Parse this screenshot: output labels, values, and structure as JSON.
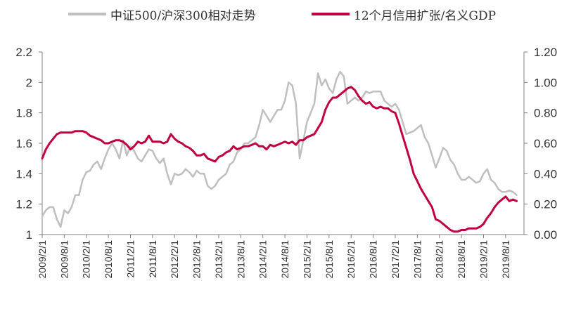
{
  "chart_data": {
    "type": "line",
    "title": "",
    "xlabel": "",
    "ylabel": "",
    "legend_position": "top",
    "grid": false,
    "x_tick_labels": [
      "2009/2/1",
      "2009/8/1",
      "2010/2/1",
      "2010/8/1",
      "2011/2/1",
      "2011/8/1",
      "2012/2/1",
      "2012/8/1",
      "2013/2/1",
      "2013/8/1",
      "2014/2/1",
      "2014/8/1",
      "2015/2/1",
      "2015/8/1",
      "2016/2/1",
      "2016/8/1",
      "2017/2/1",
      "2017/8/1",
      "2018/2/1",
      "2018/8/1",
      "2019/2/1",
      "2019/8/1"
    ],
    "y_left": {
      "lim": [
        1,
        2.2
      ],
      "ticks": [
        "1",
        "1.2",
        "1.4",
        "1.6",
        "1.8",
        "2",
        "2.2"
      ]
    },
    "y_right": {
      "lim": [
        0,
        1.2
      ],
      "ticks": [
        "0.00",
        "0.20",
        "0.40",
        "0.60",
        "0.80",
        "1.00",
        "1.20"
      ]
    },
    "series": [
      {
        "name": "中证500/沪深300相对走势",
        "axis": "left",
        "color": "#bfbfbf",
        "points": [
          [
            "2009/2/1",
            1.12
          ],
          [
            "2009/3/1",
            1.16
          ],
          [
            "2009/4/1",
            1.18
          ],
          [
            "2009/5/1",
            1.18
          ],
          [
            "2009/6/1",
            1.1
          ],
          [
            "2009/7/1",
            1.05
          ],
          [
            "2009/8/1",
            1.16
          ],
          [
            "2009/9/1",
            1.14
          ],
          [
            "2009/10/1",
            1.18
          ],
          [
            "2009/11/1",
            1.26
          ],
          [
            "2009/12/1",
            1.26
          ],
          [
            "2010/1/1",
            1.36
          ],
          [
            "2010/2/1",
            1.41
          ],
          [
            "2010/3/1",
            1.42
          ],
          [
            "2010/4/1",
            1.46
          ],
          [
            "2010/5/1",
            1.48
          ],
          [
            "2010/6/1",
            1.43
          ],
          [
            "2010/7/1",
            1.5
          ],
          [
            "2010/8/1",
            1.56
          ],
          [
            "2010/9/1",
            1.6
          ],
          [
            "2010/10/1",
            1.56
          ],
          [
            "2010/11/1",
            1.5
          ],
          [
            "2010/12/1",
            1.62
          ],
          [
            "2011/1/1",
            1.52
          ],
          [
            "2011/2/1",
            1.58
          ],
          [
            "2011/3/1",
            1.55
          ],
          [
            "2011/4/1",
            1.5
          ],
          [
            "2011/5/1",
            1.48
          ],
          [
            "2011/6/1",
            1.52
          ],
          [
            "2011/7/1",
            1.56
          ],
          [
            "2011/8/1",
            1.55
          ],
          [
            "2011/9/1",
            1.5
          ],
          [
            "2011/10/1",
            1.47
          ],
          [
            "2011/11/1",
            1.5
          ],
          [
            "2011/12/1",
            1.4
          ],
          [
            "2012/1/1",
            1.33
          ],
          [
            "2012/2/1",
            1.4
          ],
          [
            "2012/3/1",
            1.39
          ],
          [
            "2012/4/1",
            1.4
          ],
          [
            "2012/5/1",
            1.43
          ],
          [
            "2012/6/1",
            1.41
          ],
          [
            "2012/7/1",
            1.38
          ],
          [
            "2012/8/1",
            1.42
          ],
          [
            "2012/9/1",
            1.4
          ],
          [
            "2012/10/1",
            1.4
          ],
          [
            "2012/11/1",
            1.32
          ],
          [
            "2012/12/1",
            1.3
          ],
          [
            "2013/1/1",
            1.32
          ],
          [
            "2013/2/1",
            1.36
          ],
          [
            "2013/3/1",
            1.38
          ],
          [
            "2013/4/1",
            1.4
          ],
          [
            "2013/5/1",
            1.46
          ],
          [
            "2013/6/1",
            1.48
          ],
          [
            "2013/7/1",
            1.54
          ],
          [
            "2013/8/1",
            1.56
          ],
          [
            "2013/9/1",
            1.6
          ],
          [
            "2013/10/1",
            1.6
          ],
          [
            "2013/11/1",
            1.62
          ],
          [
            "2013/12/1",
            1.64
          ],
          [
            "2014/1/1",
            1.72
          ],
          [
            "2014/2/1",
            1.82
          ],
          [
            "2014/3/1",
            1.78
          ],
          [
            "2014/4/1",
            1.74
          ],
          [
            "2014/5/1",
            1.78
          ],
          [
            "2014/6/1",
            1.82
          ],
          [
            "2014/7/1",
            1.82
          ],
          [
            "2014/8/1",
            1.88
          ],
          [
            "2014/9/1",
            2.0
          ],
          [
            "2014/10/1",
            1.98
          ],
          [
            "2014/11/1",
            1.86
          ],
          [
            "2014/12/1",
            1.5
          ],
          [
            "2015/1/1",
            1.62
          ],
          [
            "2015/2/1",
            1.74
          ],
          [
            "2015/3/1",
            1.8
          ],
          [
            "2015/4/1",
            1.86
          ],
          [
            "2015/5/1",
            2.06
          ],
          [
            "2015/6/1",
            1.98
          ],
          [
            "2015/7/1",
            2.02
          ],
          [
            "2015/8/1",
            1.96
          ],
          [
            "2015/9/1",
            1.93
          ],
          [
            "2015/10/1",
            2.02
          ],
          [
            "2015/11/1",
            2.07
          ],
          [
            "2015/12/1",
            2.04
          ],
          [
            "2016/1/1",
            1.86
          ],
          [
            "2016/2/1",
            1.88
          ],
          [
            "2016/3/1",
            1.9
          ],
          [
            "2016/4/1",
            1.88
          ],
          [
            "2016/5/1",
            1.9
          ],
          [
            "2016/6/1",
            1.94
          ],
          [
            "2016/7/1",
            1.93
          ],
          [
            "2016/8/1",
            1.94
          ],
          [
            "2016/9/1",
            1.94
          ],
          [
            "2016/10/1",
            1.94
          ],
          [
            "2016/11/1",
            1.88
          ],
          [
            "2016/12/1",
            1.86
          ],
          [
            "2017/1/1",
            1.84
          ],
          [
            "2017/2/1",
            1.86
          ],
          [
            "2017/3/1",
            1.82
          ],
          [
            "2017/4/1",
            1.74
          ],
          [
            "2017/5/1",
            1.66
          ],
          [
            "2017/6/1",
            1.67
          ],
          [
            "2017/7/1",
            1.68
          ],
          [
            "2017/8/1",
            1.7
          ],
          [
            "2017/9/1",
            1.72
          ],
          [
            "2017/10/1",
            1.64
          ],
          [
            "2017/11/1",
            1.6
          ],
          [
            "2017/12/1",
            1.52
          ],
          [
            "2018/1/1",
            1.44
          ],
          [
            "2018/2/1",
            1.5
          ],
          [
            "2018/3/1",
            1.57
          ],
          [
            "2018/4/1",
            1.55
          ],
          [
            "2018/5/1",
            1.49
          ],
          [
            "2018/6/1",
            1.46
          ],
          [
            "2018/7/1",
            1.4
          ],
          [
            "2018/8/1",
            1.36
          ],
          [
            "2018/9/1",
            1.36
          ],
          [
            "2018/10/1",
            1.38
          ],
          [
            "2018/11/1",
            1.36
          ],
          [
            "2018/12/1",
            1.34
          ],
          [
            "2019/1/1",
            1.35
          ],
          [
            "2019/2/1",
            1.4
          ],
          [
            "2019/3/1",
            1.43
          ],
          [
            "2019/4/1",
            1.36
          ],
          [
            "2019/5/1",
            1.34
          ],
          [
            "2019/6/1",
            1.3
          ],
          [
            "2019/7/1",
            1.28
          ],
          [
            "2019/8/1",
            1.28
          ],
          [
            "2019/9/1",
            1.29
          ],
          [
            "2019/10/1",
            1.28
          ],
          [
            "2019/11/1",
            1.26
          ]
        ]
      },
      {
        "name": "12个月信用扩张/名义GDP",
        "axis": "right",
        "color": "#c00040",
        "points": [
          [
            "2009/2/1",
            0.5
          ],
          [
            "2009/3/1",
            0.56
          ],
          [
            "2009/4/1",
            0.6
          ],
          [
            "2009/5/1",
            0.63
          ],
          [
            "2009/6/1",
            0.66
          ],
          [
            "2009/7/1",
            0.67
          ],
          [
            "2009/8/1",
            0.67
          ],
          [
            "2009/9/1",
            0.67
          ],
          [
            "2009/10/1",
            0.67
          ],
          [
            "2009/11/1",
            0.68
          ],
          [
            "2009/12/1",
            0.68
          ],
          [
            "2010/1/1",
            0.68
          ],
          [
            "2010/2/1",
            0.67
          ],
          [
            "2010/3/1",
            0.65
          ],
          [
            "2010/4/1",
            0.64
          ],
          [
            "2010/5/1",
            0.63
          ],
          [
            "2010/6/1",
            0.62
          ],
          [
            "2010/7/1",
            0.6
          ],
          [
            "2010/8/1",
            0.6
          ],
          [
            "2010/9/1",
            0.61
          ],
          [
            "2010/10/1",
            0.62
          ],
          [
            "2010/11/1",
            0.62
          ],
          [
            "2010/12/1",
            0.61
          ],
          [
            "2011/1/1",
            0.59
          ],
          [
            "2011/2/1",
            0.56
          ],
          [
            "2011/3/1",
            0.58
          ],
          [
            "2011/4/1",
            0.61
          ],
          [
            "2011/5/1",
            0.6
          ],
          [
            "2011/6/1",
            0.61
          ],
          [
            "2011/7/1",
            0.65
          ],
          [
            "2011/8/1",
            0.61
          ],
          [
            "2011/9/1",
            0.61
          ],
          [
            "2011/10/1",
            0.61
          ],
          [
            "2011/11/1",
            0.6
          ],
          [
            "2011/12/1",
            0.61
          ],
          [
            "2012/1/1",
            0.66
          ],
          [
            "2012/2/1",
            0.63
          ],
          [
            "2012/3/1",
            0.61
          ],
          [
            "2012/4/1",
            0.6
          ],
          [
            "2012/5/1",
            0.58
          ],
          [
            "2012/6/1",
            0.57
          ],
          [
            "2012/7/1",
            0.55
          ],
          [
            "2012/8/1",
            0.52
          ],
          [
            "2012/9/1",
            0.52
          ],
          [
            "2012/10/1",
            0.53
          ],
          [
            "2012/11/1",
            0.5
          ],
          [
            "2012/12/1",
            0.49
          ],
          [
            "2013/1/1",
            0.48
          ],
          [
            "2013/2/1",
            0.51
          ],
          [
            "2013/3/1",
            0.52
          ],
          [
            "2013/4/1",
            0.54
          ],
          [
            "2013/5/1",
            0.55
          ],
          [
            "2013/6/1",
            0.58
          ],
          [
            "2013/7/1",
            0.56
          ],
          [
            "2013/8/1",
            0.57
          ],
          [
            "2013/9/1",
            0.58
          ],
          [
            "2013/10/1",
            0.58
          ],
          [
            "2013/11/1",
            0.59
          ],
          [
            "2013/12/1",
            0.6
          ],
          [
            "2014/1/1",
            0.58
          ],
          [
            "2014/2/1",
            0.58
          ],
          [
            "2014/3/1",
            0.56
          ],
          [
            "2014/4/1",
            0.59
          ],
          [
            "2014/5/1",
            0.58
          ],
          [
            "2014/6/1",
            0.59
          ],
          [
            "2014/7/1",
            0.6
          ],
          [
            "2014/8/1",
            0.61
          ],
          [
            "2014/9/1",
            0.6
          ],
          [
            "2014/10/1",
            0.61
          ],
          [
            "2014/11/1",
            0.59
          ],
          [
            "2014/12/1",
            0.62
          ],
          [
            "2015/1/1",
            0.62
          ],
          [
            "2015/2/1",
            0.64
          ],
          [
            "2015/3/1",
            0.65
          ],
          [
            "2015/4/1",
            0.66
          ],
          [
            "2015/5/1",
            0.7
          ],
          [
            "2015/6/1",
            0.74
          ],
          [
            "2015/7/1",
            0.82
          ],
          [
            "2015/8/1",
            0.87
          ],
          [
            "2015/9/1",
            0.9
          ],
          [
            "2015/10/1",
            0.9
          ],
          [
            "2015/11/1",
            0.92
          ],
          [
            "2015/12/1",
            0.94
          ],
          [
            "2016/1/1",
            0.96
          ],
          [
            "2016/2/1",
            0.97
          ],
          [
            "2016/3/1",
            0.95
          ],
          [
            "2016/4/1",
            0.91
          ],
          [
            "2016/5/1",
            0.88
          ],
          [
            "2016/6/1",
            0.86
          ],
          [
            "2016/7/1",
            0.87
          ],
          [
            "2016/8/1",
            0.84
          ],
          [
            "2016/9/1",
            0.83
          ],
          [
            "2016/10/1",
            0.84
          ],
          [
            "2016/11/1",
            0.83
          ],
          [
            "2016/12/1",
            0.83
          ],
          [
            "2017/1/1",
            0.81
          ],
          [
            "2017/2/1",
            0.8
          ],
          [
            "2017/3/1",
            0.73
          ],
          [
            "2017/4/1",
            0.65
          ],
          [
            "2017/5/1",
            0.57
          ],
          [
            "2017/6/1",
            0.49
          ],
          [
            "2017/7/1",
            0.4
          ],
          [
            "2017/8/1",
            0.35
          ],
          [
            "2017/9/1",
            0.3
          ],
          [
            "2017/10/1",
            0.26
          ],
          [
            "2017/11/1",
            0.22
          ],
          [
            "2017/12/1",
            0.18
          ],
          [
            "2018/1/1",
            0.1
          ],
          [
            "2018/2/1",
            0.09
          ],
          [
            "2018/3/1",
            0.07
          ],
          [
            "2018/4/1",
            0.05
          ],
          [
            "2018/5/1",
            0.03
          ],
          [
            "2018/6/1",
            0.02
          ],
          [
            "2018/7/1",
            0.02
          ],
          [
            "2018/8/1",
            0.03
          ],
          [
            "2018/9/1",
            0.03
          ],
          [
            "2018/10/1",
            0.04
          ],
          [
            "2018/11/1",
            0.04
          ],
          [
            "2018/12/1",
            0.04
          ],
          [
            "2019/1/1",
            0.05
          ],
          [
            "2019/2/1",
            0.07
          ],
          [
            "2019/3/1",
            0.11
          ],
          [
            "2019/4/1",
            0.14
          ],
          [
            "2019/5/1",
            0.18
          ],
          [
            "2019/6/1",
            0.21
          ],
          [
            "2019/7/1",
            0.23
          ],
          [
            "2019/8/1",
            0.25
          ],
          [
            "2019/9/1",
            0.22
          ],
          [
            "2019/10/1",
            0.23
          ],
          [
            "2019/11/1",
            0.22
          ]
        ]
      }
    ]
  }
}
